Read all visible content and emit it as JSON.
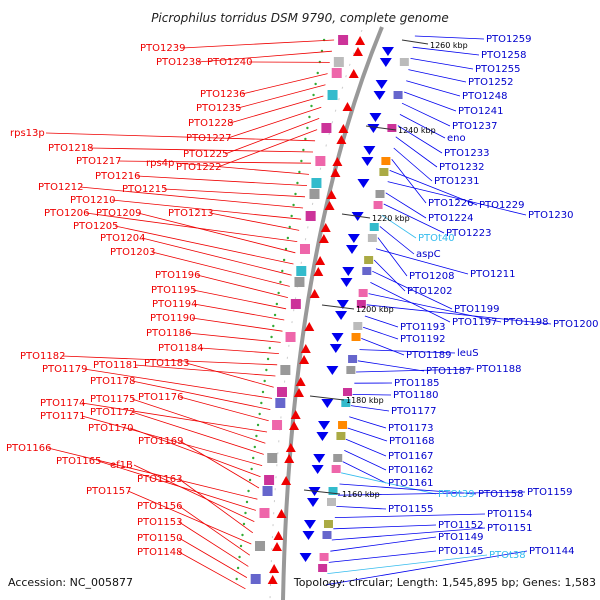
{
  "title": "Picrophilus torridus DSM 9790, complete genome",
  "accession": "Accession: NC_005877",
  "topology": "Topology: circular; Length: 1,545,895 bp; Genes: 1,583",
  "colors": {
    "forward": "#ee0000",
    "reverse": "#0000ee",
    "rna": "#33bbee",
    "backbone": "#999999"
  },
  "kbp_ticks": [
    "1260 kbp",
    "1240 kbp",
    "1220 kbp",
    "1200 kbp",
    "1180 kbp",
    "1160 kbp"
  ],
  "left_labels": [
    "PTO1239",
    "PTO1238",
    "PTO1240",
    "PTO1236",
    "PTO1235",
    "PTO1228",
    "PTO1227",
    "PTO1225",
    "PTO1222",
    "rps13p",
    "PTO1218",
    "PTO1217",
    "rps4p",
    "PTO1216",
    "PTO1215",
    "PTO1212",
    "PTO1210",
    "PTO1213",
    "PTO1206",
    "PTO1209",
    "PTO1205",
    "PTO1204",
    "PTO1203",
    "PTO1196",
    "PTO1195",
    "PTO1194",
    "PTO1190",
    "PTO1186",
    "PTO1184",
    "PTO1182",
    "PTO1181",
    "PTO1183",
    "PTO1179",
    "PTO1178",
    "PTO1176",
    "PTO1174",
    "PTO1175",
    "PTO1172",
    "PTO1171",
    "PTO1170",
    "PTO1169",
    "PTO1166",
    "PTO1165",
    "ef1B",
    "PTO1163",
    "PTO1157",
    "PTO1156",
    "PTO1153",
    "PTO1150",
    "PTO1148"
  ],
  "right_labels": [
    "PTO1259",
    "PTO1258",
    "PTO1255",
    "PTO1252",
    "PTO1248",
    "PTO1241",
    "PTO1237",
    "eno",
    "PTO1233",
    "PTO1232",
    "PTO1231",
    "PTO1226",
    "PTO1229",
    "PTO1230",
    "PTO1224",
    "PTO1223",
    "PTOt40",
    "aspC",
    "PTO1208",
    "PTO1211",
    "PTO1202",
    "PTO1199",
    "PTO1197",
    "PTO1198",
    "PTO1200",
    "PTO1193",
    "PTO1192",
    "PTO1189",
    "leuS",
    "PTO1187",
    "PTO1188",
    "PTO1185",
    "PTO1180",
    "PTO1177",
    "PTO1173",
    "PTO1168",
    "PTO1167",
    "PTO1162",
    "PTO1161",
    "PTOt39",
    "PTO1158",
    "PTO1159",
    "PTO1155",
    "PTO1154",
    "PTO1152",
    "PTO1151",
    "PTO1149",
    "PTO1145",
    "PTOt38",
    "PTO1144"
  ]
}
